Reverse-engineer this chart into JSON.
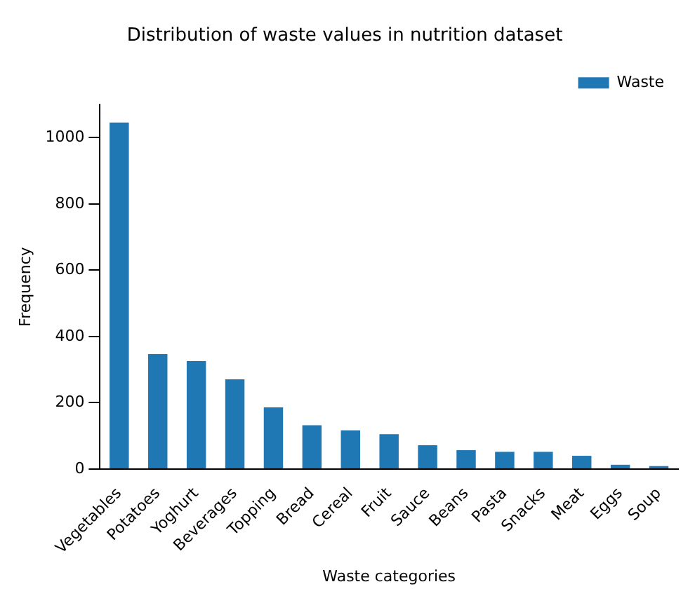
{
  "chart_data": {
    "type": "bar",
    "title": "Distribution of waste values in nutrition dataset",
    "xlabel": "Waste categories",
    "ylabel": "Frequency",
    "categories": [
      "Vegetables",
      "Potatoes",
      "Yoghurt",
      "Beverages",
      "Topping",
      "Bread",
      "Cereal",
      "Fruit",
      "Sauce",
      "Beans",
      "Pasta",
      "Snacks",
      "Meat",
      "Eggs",
      "Soup"
    ],
    "series": [
      {
        "name": "Waste",
        "color": "#1f77b4",
        "values": [
          1046,
          347,
          326,
          271,
          186,
          132,
          117,
          105,
          72,
          57,
          52,
          52,
          40,
          13,
          9
        ]
      }
    ],
    "ylim": [
      0,
      1100
    ],
    "yticks": [
      0,
      200,
      400,
      600,
      800,
      1000
    ],
    "grid": false,
    "legend": "top right"
  }
}
